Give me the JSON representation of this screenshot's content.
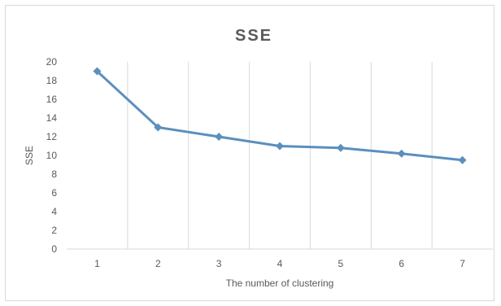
{
  "chart_data": {
    "type": "line",
    "title": "SSE",
    "xlabel": "The number of clustering",
    "ylabel": "SSE",
    "categories": [
      "1",
      "2",
      "3",
      "4",
      "5",
      "6",
      "7"
    ],
    "series": [
      {
        "values": [
          19,
          13,
          12,
          11,
          10.8,
          10.2,
          9.5
        ],
        "color": "#5b8fbe",
        "marker": "diamond"
      }
    ],
    "ylim": [
      0,
      20
    ],
    "yticks": [
      0,
      2,
      4,
      6,
      8,
      10,
      12,
      14,
      16,
      18,
      20
    ],
    "grid": "vertical",
    "legend": "none"
  }
}
